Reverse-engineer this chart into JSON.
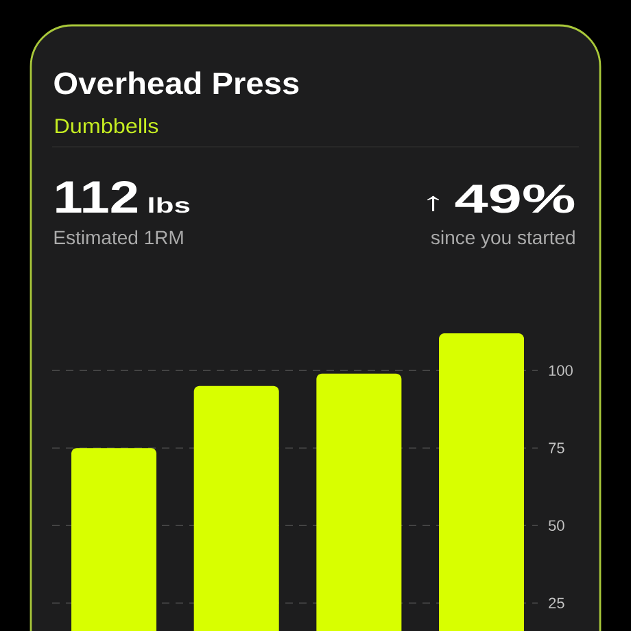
{
  "chart_data": {
    "type": "bar",
    "title": "Overhead Press",
    "subtitle": "Dumbbells",
    "annotations": [
      "112",
      "lbs",
      "Estimated 1RM",
      "↑",
      "49%",
      "since you started"
    ],
    "categories": [
      null,
      null,
      null,
      null
    ],
    "values": [
      75,
      95,
      99,
      112
    ],
    "color": "#d8ff00",
    "ylim": [
      0,
      112
    ],
    "yticks": [
      25,
      50,
      75,
      100
    ],
    "grid": "y",
    "tick_labels": "y"
  }
}
